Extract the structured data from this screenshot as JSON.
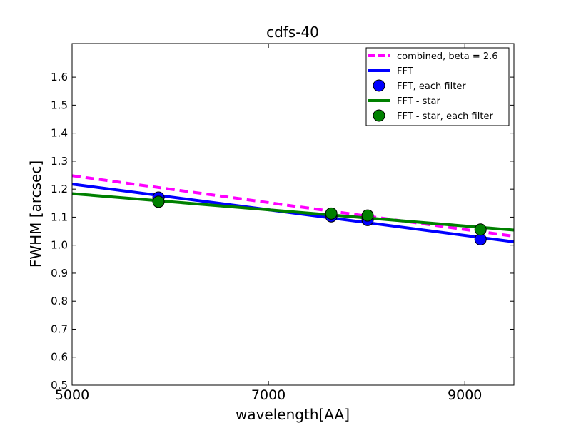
{
  "chart_data": {
    "type": "line",
    "title": "cdfs-40",
    "xlabel": "wavelength[AA]",
    "ylabel": "FWHM [arcsec]",
    "xlim": [
      5000,
      9500
    ],
    "ylim": [
      0.5,
      1.72
    ],
    "xticks": [
      5000,
      7000,
      9000
    ],
    "xtick_labels": [
      "5000",
      "7000",
      "9000"
    ],
    "yticks": [
      0.5,
      0.6,
      0.7,
      0.8,
      0.9,
      1.0,
      1.1,
      1.2,
      1.3,
      1.4,
      1.5,
      1.6
    ],
    "ytick_labels": [
      "0.5",
      "0.6",
      "0.7",
      "0.8",
      "0.9",
      "1.0",
      "1.1",
      "1.2",
      "1.3",
      "1.4",
      "1.5",
      "1.6"
    ],
    "grid": false,
    "legend_position": "top-right",
    "series": [
      {
        "name": "combined, beta = 2.6",
        "kind": "line",
        "style": "dashed",
        "color": "#ff00ff",
        "x": [
          5000,
          9500
        ],
        "y": [
          1.248,
          1.032
        ]
      },
      {
        "name": "FFT",
        "kind": "line",
        "style": "solid",
        "color": "#0000ff",
        "x": [
          5000,
          9500
        ],
        "y": [
          1.218,
          1.012
        ]
      },
      {
        "name": "FFT, each filter",
        "kind": "scatter",
        "color": "#0000ff",
        "x": [
          5880,
          7640,
          8010,
          9160
        ],
        "y": [
          1.17,
          1.103,
          1.09,
          1.021
        ]
      },
      {
        "name": "FFT - star",
        "kind": "line",
        "style": "solid",
        "color": "#008000",
        "x": [
          5000,
          9500
        ],
        "y": [
          1.184,
          1.054
        ]
      },
      {
        "name": "FFT - star, each filter",
        "kind": "scatter",
        "color": "#008000",
        "x": [
          5880,
          7640,
          8010,
          9160
        ],
        "y": [
          1.155,
          1.113,
          1.106,
          1.056
        ]
      }
    ]
  }
}
